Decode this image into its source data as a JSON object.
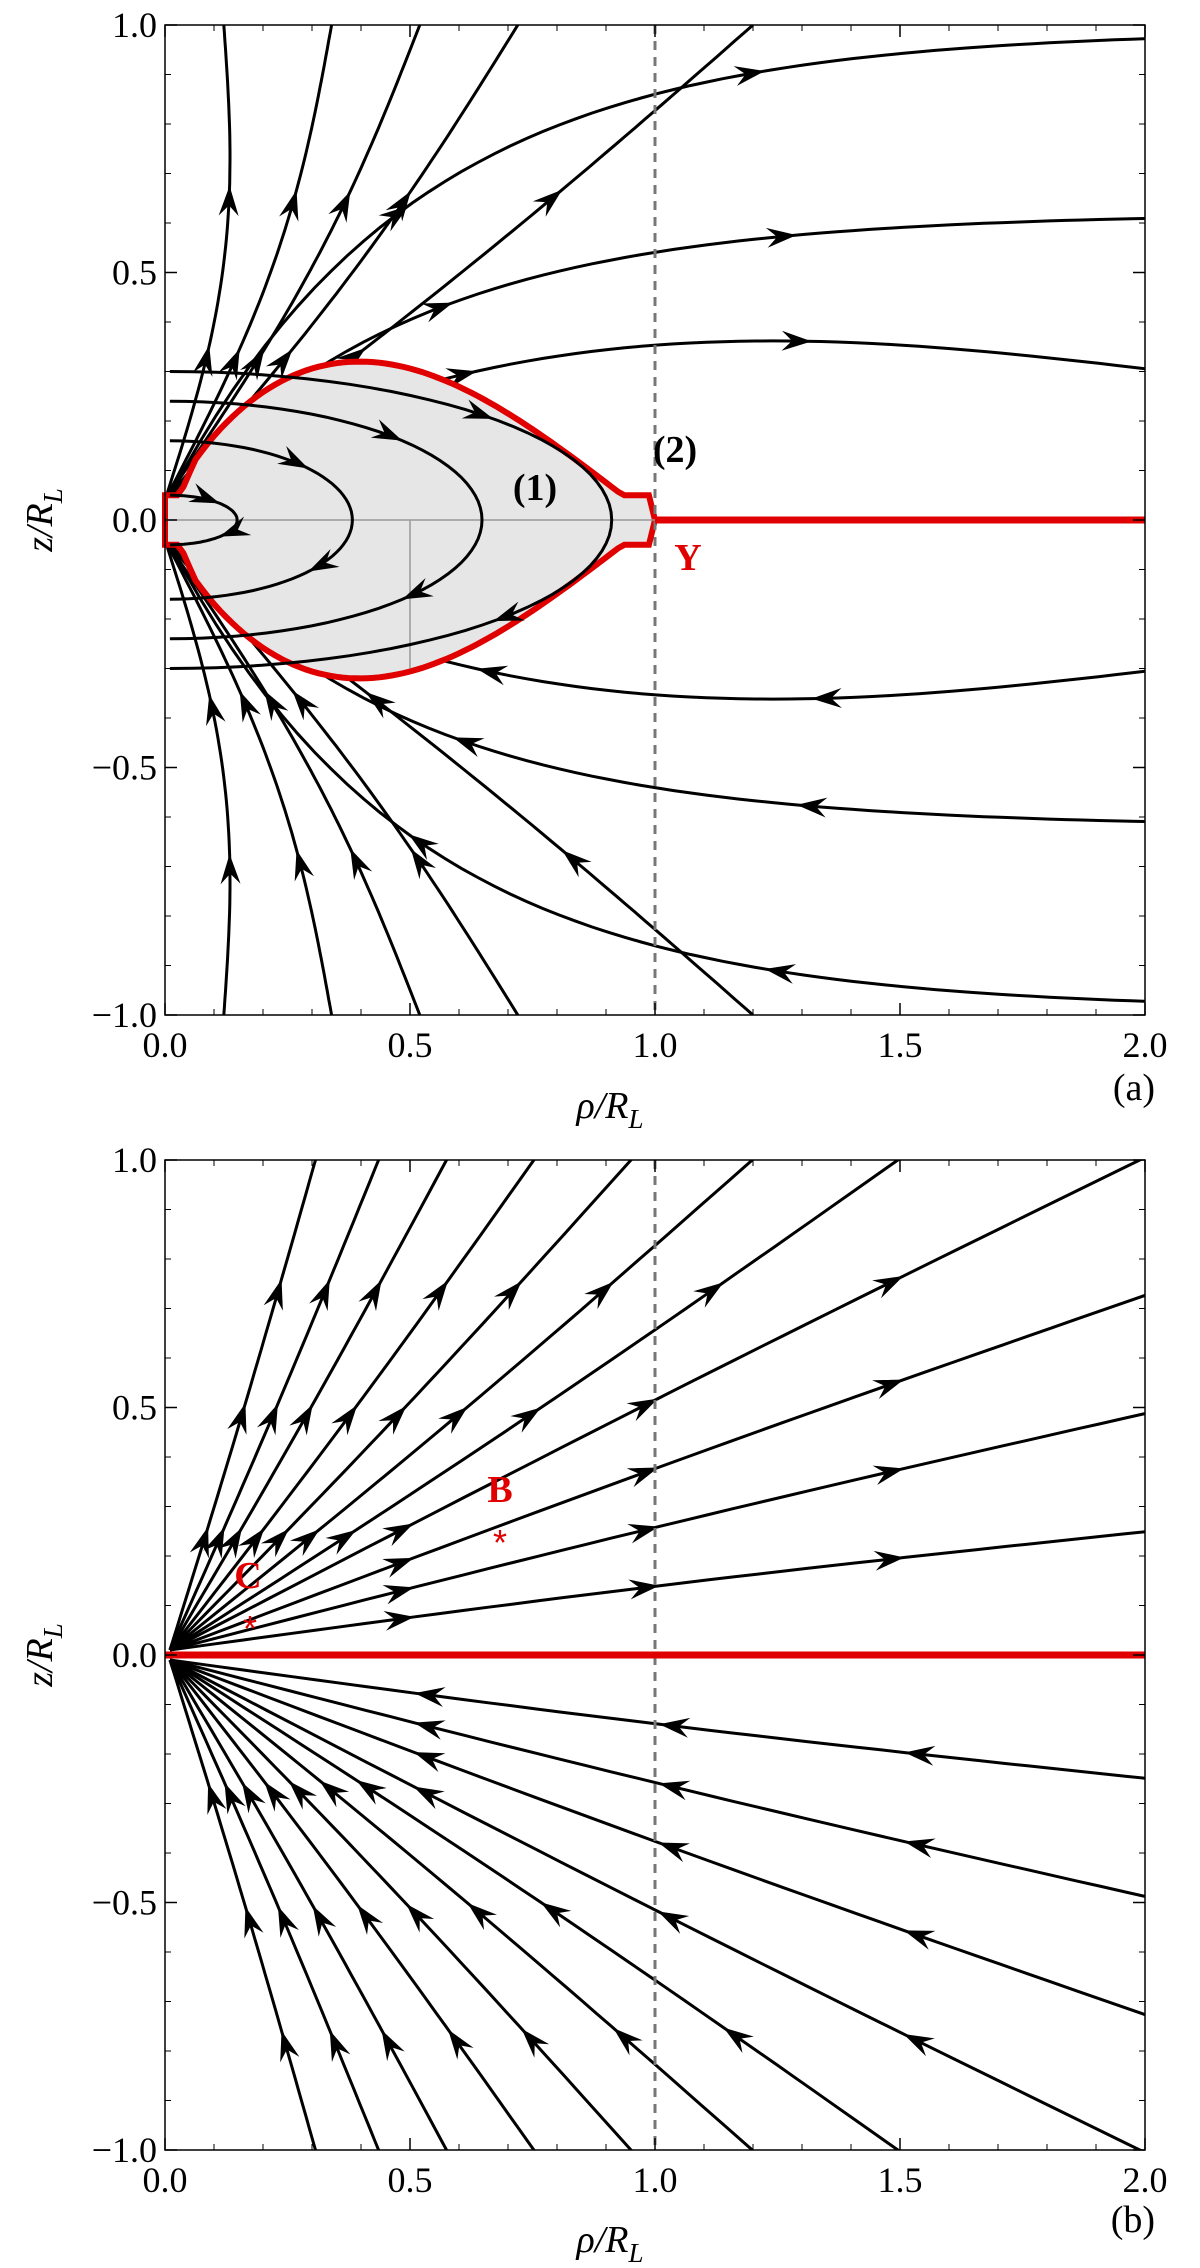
{
  "chart_data": [
    {
      "type": "streamline",
      "panel_label": "(a)",
      "xlabel": "ρ/R",
      "xlabel_sub": "L",
      "ylabel": "z/R",
      "ylabel_sub": "L",
      "xlim": [
        0.0,
        2.0
      ],
      "ylim": [
        -1.0,
        1.0
      ],
      "xticks": [
        "0.0",
        "0.5",
        "1.0",
        "1.5",
        "2.0"
      ],
      "yticks": [
        "−1.0",
        "−0.5",
        "0.0",
        "0.5",
        "1.0"
      ],
      "light_cylinder_x": 1.0,
      "closed_zone": {
        "y_point": [
          1.0,
          0.0
        ],
        "height": 0.32
      },
      "current_sheet": {
        "from_x": 1.0,
        "to_x": 2.0,
        "y": 0.0
      },
      "annotations": [
        {
          "text": "(1)",
          "x": 0.76,
          "y": 0.02,
          "color": "black"
        },
        {
          "text": "(2)",
          "x": 1.04,
          "y": 0.13,
          "color": "black"
        },
        {
          "text": "Y",
          "x": 1.07,
          "y": -0.09,
          "color": "red"
        }
      ]
    },
    {
      "type": "streamline",
      "panel_label": "(b)",
      "xlabel": "ρ/R",
      "xlabel_sub": "L",
      "ylabel": "z/R",
      "ylabel_sub": "L",
      "xlim": [
        0.0,
        2.0
      ],
      "ylim": [
        -1.0,
        1.0
      ],
      "xticks": [
        "0.0",
        "0.5",
        "1.0",
        "1.5",
        "2.0"
      ],
      "yticks": [
        "−1.0",
        "−0.5",
        "0.0",
        "0.5",
        "1.0"
      ],
      "light_cylinder_x": 1.0,
      "current_sheet": {
        "from_x": 0.0,
        "to_x": 2.0,
        "y": 0.0
      },
      "annotations": [
        {
          "text": "B",
          "x": 0.69,
          "y": 0.32,
          "color": "red"
        },
        {
          "text": "C",
          "x": 0.17,
          "y": 0.16,
          "color": "red"
        }
      ],
      "stars": [
        {
          "x": 0.69,
          "y": 0.235
        },
        {
          "x": 0.17,
          "y": 0.05
        }
      ]
    }
  ]
}
